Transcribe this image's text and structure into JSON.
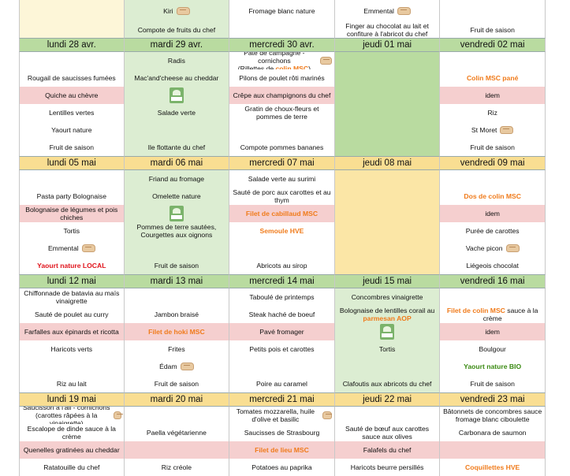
{
  "icons": {
    "bread": "bread-icon",
    "veg": "vegetarian-label-icon"
  },
  "weeks": [
    {
      "key": "w0",
      "rows": [
        [
          {
            "bg": "c",
            "text": ""
          },
          {
            "bg": "g",
            "text": "Kiri",
            "icon": "bread"
          },
          {
            "bg": "w",
            "text": "Fromage blanc nature"
          },
          {
            "bg": "w",
            "text": "Emmental",
            "icon": "bread"
          },
          {
            "bg": "w",
            "text": ""
          }
        ],
        [
          {
            "bg": "c",
            "text": ""
          },
          {
            "bg": "g",
            "text": "Compote de fruits du chef"
          },
          {
            "bg": "w",
            "text": ""
          },
          {
            "bg": "w",
            "text": "Finger au chocolat au lait et confiture à l'abricot du chef"
          },
          {
            "bg": "w",
            "text": "Fruit de saison"
          }
        ]
      ]
    },
    {
      "key": "w1",
      "days": [
        {
          "label": "lundi 28 avr.",
          "bg": "G"
        },
        {
          "label": "mardi 29 avr.",
          "bg": "G"
        },
        {
          "label": "mercredi 30 avr.",
          "bg": "G"
        },
        {
          "label": "jeudi 01 mai",
          "bg": "G"
        },
        {
          "label": "vendredi 02 mai",
          "bg": "G"
        }
      ],
      "rows": [
        [
          {
            "bg": "w",
            "text": ""
          },
          {
            "bg": "g",
            "text": "Radis"
          },
          {
            "bg": "w",
            "text": "Pâté de campagne - cornichons",
            "text2": "(Rillettes de ",
            "hi": "colin MSC",
            "text3": ")",
            "icon": "bread"
          },
          {
            "bg": "G",
            "text": ""
          },
          {
            "bg": "w",
            "text": ""
          }
        ],
        [
          {
            "bg": "w",
            "text": "Rougail de saucisses fumées"
          },
          {
            "bg": "g",
            "text": "Mac'and'cheese au cheddar"
          },
          {
            "bg": "w",
            "text": "Pilons de poulet rôti marinés"
          },
          {
            "bg": "G",
            "text": ""
          },
          {
            "bg": "w",
            "text": "Colin MSC pané",
            "style": "orange"
          }
        ],
        [
          {
            "bg": "p",
            "text": "Quiche au chèvre"
          },
          {
            "bg": "g",
            "text": "",
            "icon": "veg"
          },
          {
            "bg": "p",
            "text": "Crêpe aux champignons du chef"
          },
          {
            "bg": "G",
            "text": ""
          },
          {
            "bg": "p",
            "text": "idem"
          }
        ],
        [
          {
            "bg": "w",
            "text": "Lentilles vertes"
          },
          {
            "bg": "g",
            "text": "Salade verte"
          },
          {
            "bg": "w",
            "text": "Gratin de choux-fleurs et pommes de terre"
          },
          {
            "bg": "G",
            "text": ""
          },
          {
            "bg": "w",
            "text": "Riz"
          }
        ],
        [
          {
            "bg": "w",
            "text": "Yaourt nature"
          },
          {
            "bg": "g",
            "text": ""
          },
          {
            "bg": "w",
            "text": ""
          },
          {
            "bg": "G",
            "text": ""
          },
          {
            "bg": "w",
            "text": "St Moret",
            "icon": "bread"
          }
        ],
        [
          {
            "bg": "w",
            "text": "Fruit de saison"
          },
          {
            "bg": "g",
            "text": "Ile flottante du chef"
          },
          {
            "bg": "w",
            "text": "Compote pommes bananes"
          },
          {
            "bg": "G",
            "text": ""
          },
          {
            "bg": "w",
            "text": "Fruit de saison"
          }
        ]
      ]
    },
    {
      "key": "w2",
      "days": [
        {
          "label": "lundi 05 mai",
          "bg": "Y"
        },
        {
          "label": "mardi 06 mai",
          "bg": "Y"
        },
        {
          "label": "mercredi 07 mai",
          "bg": "Y"
        },
        {
          "label": "jeudi 08 mai",
          "bg": "Y"
        },
        {
          "label": "vendredi 09 mai",
          "bg": "Y"
        }
      ],
      "rows": [
        [
          {
            "bg": "w",
            "text": ""
          },
          {
            "bg": "g",
            "text": "Friand au fromage"
          },
          {
            "bg": "w",
            "text": "Salade verte au surimi"
          },
          {
            "bg": "y",
            "text": ""
          },
          {
            "bg": "w",
            "text": ""
          }
        ],
        [
          {
            "bg": "w",
            "text": "Pasta party Bolognaise"
          },
          {
            "bg": "g",
            "text": "Omelette nature"
          },
          {
            "bg": "w",
            "text": "Sauté de porc aux carottes et au thym"
          },
          {
            "bg": "y",
            "text": ""
          },
          {
            "bg": "w",
            "text": "Dos de colin MSC",
            "style": "orange"
          }
        ],
        [
          {
            "bg": "p",
            "text": "Bolognaise de légumes et pois chiches"
          },
          {
            "bg": "g",
            "text": "",
            "icon": "veg"
          },
          {
            "bg": "p",
            "text": "Filet de cabillaud MSC",
            "style": "orange"
          },
          {
            "bg": "y",
            "text": ""
          },
          {
            "bg": "p",
            "text": "idem"
          }
        ],
        [
          {
            "bg": "w",
            "text": "Tortis"
          },
          {
            "bg": "g",
            "text": "Pommes de terre sautées, Courgettes aux oignons"
          },
          {
            "bg": "w",
            "text": "Semoule HVE",
            "style": "orange"
          },
          {
            "bg": "y",
            "text": ""
          },
          {
            "bg": "w",
            "text": "Purée de carottes"
          }
        ],
        [
          {
            "bg": "w",
            "text": "Emmental",
            "icon": "bread"
          },
          {
            "bg": "g",
            "text": ""
          },
          {
            "bg": "w",
            "text": ""
          },
          {
            "bg": "y",
            "text": ""
          },
          {
            "bg": "w",
            "text": "Vache picon",
            "icon": "bread"
          }
        ],
        [
          {
            "bg": "w",
            "text": "Yaourt nature LOCAL",
            "style": "red"
          },
          {
            "bg": "g",
            "text": "Fruit de saison"
          },
          {
            "bg": "w",
            "text": "Abricots au sirop"
          },
          {
            "bg": "y",
            "text": ""
          },
          {
            "bg": "w",
            "text": "Liégeois chocolat"
          }
        ]
      ]
    },
    {
      "key": "w3",
      "days": [
        {
          "label": "lundi 12 mai",
          "bg": "G"
        },
        {
          "label": "mardi 13 mai",
          "bg": "G"
        },
        {
          "label": "mercredi 14 mai",
          "bg": "G"
        },
        {
          "label": "jeudi 15 mai",
          "bg": "G"
        },
        {
          "label": "vendredi 16 mai",
          "bg": "G"
        }
      ],
      "rows": [
        [
          {
            "bg": "w",
            "text": "Chiffonnade de batavia au maïs vinaigrette"
          },
          {
            "bg": "w",
            "text": ""
          },
          {
            "bg": "w",
            "text": "Taboulé de printemps"
          },
          {
            "bg": "g",
            "text": "Concombres vinaigrette"
          },
          {
            "bg": "w",
            "text": ""
          }
        ],
        [
          {
            "bg": "w",
            "text": "Sauté de poulet au curry"
          },
          {
            "bg": "w",
            "text": "Jambon braisé"
          },
          {
            "bg": "w",
            "text": "Steak haché de boeuf"
          },
          {
            "bg": "g",
            "text": "Bolognaise de lentilles corail au",
            "hi2": "parmesan AOP"
          },
          {
            "bg": "w",
            "text": "",
            "hi": "Filet de colin MSC",
            "text3": " sauce à la crème"
          }
        ],
        [
          {
            "bg": "p",
            "text": "Farfalles aux épinards et ricotta"
          },
          {
            "bg": "p",
            "text": "Filet de hoki MSC",
            "style": "orange"
          },
          {
            "bg": "p",
            "text": "Pavé fromager"
          },
          {
            "bg": "g",
            "text": "",
            "icon": "veg"
          },
          {
            "bg": "p",
            "text": "idem"
          }
        ],
        [
          {
            "bg": "w",
            "text": "Haricots verts"
          },
          {
            "bg": "w",
            "text": "Frites"
          },
          {
            "bg": "w",
            "text": "Petits pois et carottes"
          },
          {
            "bg": "g",
            "text": "Tortis"
          },
          {
            "bg": "w",
            "text": "Boulgour"
          }
        ],
        [
          {
            "bg": "w",
            "text": ""
          },
          {
            "bg": "w",
            "text": "Édam",
            "icon": "bread"
          },
          {
            "bg": "w",
            "text": ""
          },
          {
            "bg": "g",
            "text": ""
          },
          {
            "bg": "w",
            "text": "Yaourt nature BIO",
            "style": "green"
          }
        ],
        [
          {
            "bg": "w",
            "text": "Riz au lait"
          },
          {
            "bg": "w",
            "text": "Fruit de saison"
          },
          {
            "bg": "w",
            "text": "Poire au caramel"
          },
          {
            "bg": "g",
            "text": "Clafoutis aux abricots du chef"
          },
          {
            "bg": "w",
            "text": "Fruit de saison"
          }
        ]
      ]
    },
    {
      "key": "w4",
      "days": [
        {
          "label": "lundi 19 mai",
          "bg": "Y"
        },
        {
          "label": "mardi 20 mai",
          "bg": "Y"
        },
        {
          "label": "mercredi 21 mai",
          "bg": "Y"
        },
        {
          "label": "jeudi 22 mai",
          "bg": "Y"
        },
        {
          "label": "vendredi 23 mai",
          "bg": "Y"
        }
      ],
      "rows": [
        [
          {
            "bg": "w",
            "text": "Saucisson à l'ail - cornichons (carottes râpées à la vinaigrette)",
            "icon": "bread"
          },
          {
            "bg": "w",
            "text": ""
          },
          {
            "bg": "w",
            "text": "Tomates mozzarella, huile d'olive et basilic",
            "icon": "bread"
          },
          {
            "bg": "w",
            "text": ""
          },
          {
            "bg": "w",
            "text": "Bâtonnets de concombres sauce fromage blanc ciboulette"
          }
        ],
        [
          {
            "bg": "w",
            "text": "Escalope de dinde sauce à la crème"
          },
          {
            "bg": "w",
            "text": "Paella végétarienne"
          },
          {
            "bg": "w",
            "text": "Saucisses de Strasbourg"
          },
          {
            "bg": "w",
            "text": "Sauté de bœuf aux carottes sauce aux olives"
          },
          {
            "bg": "w",
            "text": "Carbonara de saumon"
          }
        ],
        [
          {
            "bg": "p",
            "text": "Quenelles gratinées au cheddar"
          },
          {
            "bg": "p",
            "text": ""
          },
          {
            "bg": "p",
            "text": "Filet de lieu MSC",
            "style": "orange"
          },
          {
            "bg": "p",
            "text": "Falafels du chef"
          },
          {
            "bg": "p",
            "text": ""
          }
        ],
        [
          {
            "bg": "w",
            "text": "Ratatouille du chef"
          },
          {
            "bg": "w",
            "text": "Riz créole"
          },
          {
            "bg": "w",
            "text": "Potatoes au paprika"
          },
          {
            "bg": "w",
            "text": "Haricots beurre persillés"
          },
          {
            "bg": "w",
            "text": "Coquillettes HVE",
            "style": "orange"
          }
        ]
      ]
    }
  ]
}
